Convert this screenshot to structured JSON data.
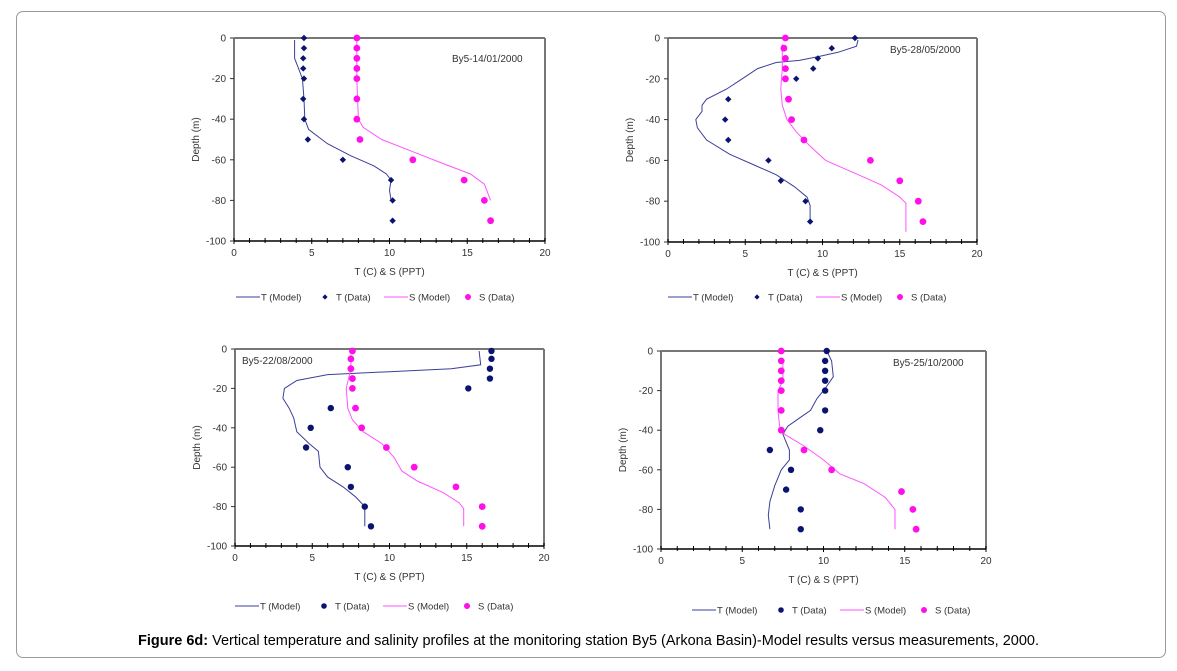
{
  "caption": {
    "label": "Figure 6d:",
    "text": " Vertical temperature and salinity profiles at the monitoring station By5 (Arkona Basin)-Model results versus measurements, 2000."
  },
  "colors": {
    "t_model": "#3b3f9a",
    "t_data": "#0a1470",
    "s_model": "#ff55ff",
    "s_data": "#ff10e8"
  },
  "chart_data": [
    {
      "type": "scatter",
      "title": "By5-14/01/2000",
      "title_position": "top-right",
      "xlabel": "T (C) & S (PPT)",
      "ylabel": "Depth (m)",
      "xlim": [
        0,
        20
      ],
      "ylim": [
        -100,
        0
      ],
      "xticks": [
        "0",
        "5",
        "10",
        "15",
        "20"
      ],
      "yticks": [
        "0",
        "-20",
        "-40",
        "-60",
        "-80",
        "-100"
      ],
      "grid": false,
      "legend_position": "bottom",
      "legend": [
        "T (Model)",
        "T (Data)",
        "S (Model)",
        "S (Data)"
      ],
      "t_data_marker": "diamond",
      "series": [
        {
          "name": "T (Model)",
          "kind": "line",
          "points": [
            [
              3.9,
              -1
            ],
            [
              3.9,
              -10
            ],
            [
              4.4,
              -20
            ],
            [
              4.5,
              -30
            ],
            [
              4.55,
              -40
            ],
            [
              4.8,
              -45
            ],
            [
              6.0,
              -52
            ],
            [
              7.5,
              -58
            ],
            [
              9.0,
              -63
            ],
            [
              9.8,
              -67
            ],
            [
              10.1,
              -70
            ],
            [
              10.0,
              -75
            ],
            [
              10.1,
              -80
            ]
          ]
        },
        {
          "name": "T (Data)",
          "kind": "scatter",
          "points": [
            [
              4.5,
              0
            ],
            [
              4.5,
              -5
            ],
            [
              4.45,
              -10
            ],
            [
              4.45,
              -15
            ],
            [
              4.5,
              -20
            ],
            [
              4.45,
              -30
            ],
            [
              4.5,
              -40
            ],
            [
              4.75,
              -50
            ],
            [
              7.0,
              -60
            ],
            [
              10.1,
              -70
            ],
            [
              10.2,
              -80
            ],
            [
              10.2,
              -90
            ]
          ]
        },
        {
          "name": "S (Model)",
          "kind": "line",
          "points": [
            [
              7.9,
              -1
            ],
            [
              7.9,
              -20
            ],
            [
              8.0,
              -40
            ],
            [
              8.3,
              -44
            ],
            [
              9.5,
              -50
            ],
            [
              11.5,
              -56
            ],
            [
              13.5,
              -62
            ],
            [
              15.2,
              -67
            ],
            [
              16.1,
              -72
            ],
            [
              16.5,
              -80
            ]
          ]
        },
        {
          "name": "S (Data)",
          "kind": "scatter",
          "points": [
            [
              7.9,
              0
            ],
            [
              7.9,
              -5
            ],
            [
              7.9,
              -10
            ],
            [
              7.9,
              -15
            ],
            [
              7.9,
              -20
            ],
            [
              7.9,
              -30
            ],
            [
              7.9,
              -40
            ],
            [
              8.1,
              -50
            ],
            [
              11.5,
              -60
            ],
            [
              14.8,
              -70
            ],
            [
              16.1,
              -80
            ],
            [
              16.5,
              -90
            ]
          ]
        }
      ]
    },
    {
      "type": "scatter",
      "title": "By5-28/05/2000",
      "title_position": "top-right",
      "xlabel": "T (C) & S (PPT)",
      "ylabel": "Depth (m)",
      "xlim": [
        0,
        20
      ],
      "ylim": [
        -100,
        0
      ],
      "xticks": [
        "0",
        "5",
        "10",
        "15",
        "20"
      ],
      "yticks": [
        "0",
        "-20",
        "-40",
        "-60",
        "-80",
        "-100"
      ],
      "grid": false,
      "legend_position": "bottom",
      "legend": [
        "T (Model)",
        "T (Data)",
        "S (Model)",
        "S (Data)"
      ],
      "t_data_marker": "diamond",
      "series": [
        {
          "name": "T (Model)",
          "kind": "line",
          "points": [
            [
              12.3,
              -1
            ],
            [
              12.2,
              -4
            ],
            [
              11.0,
              -7
            ],
            [
              9.8,
              -9
            ],
            [
              8.5,
              -11
            ],
            [
              7.0,
              -12
            ],
            [
              5.8,
              -15
            ],
            [
              4.8,
              -20
            ],
            [
              3.8,
              -25
            ],
            [
              2.5,
              -30
            ],
            [
              2.2,
              -33
            ],
            [
              2.2,
              -36
            ],
            [
              1.8,
              -40
            ],
            [
              1.9,
              -44
            ],
            [
              2.5,
              -50
            ],
            [
              4.0,
              -57
            ],
            [
              5.5,
              -62
            ],
            [
              7.0,
              -67
            ],
            [
              8.2,
              -73
            ],
            [
              9.0,
              -78
            ],
            [
              9.2,
              -82
            ],
            [
              9.2,
              -90
            ]
          ]
        },
        {
          "name": "T (Data)",
          "kind": "scatter",
          "points": [
            [
              12.1,
              0
            ],
            [
              10.6,
              -5
            ],
            [
              9.7,
              -10
            ],
            [
              9.4,
              -15
            ],
            [
              8.3,
              -20
            ],
            [
              3.9,
              -30
            ],
            [
              3.7,
              -40
            ],
            [
              3.9,
              -50
            ],
            [
              6.5,
              -60
            ],
            [
              7.3,
              -70
            ],
            [
              8.9,
              -80
            ],
            [
              9.2,
              -90
            ]
          ]
        },
        {
          "name": "S (Model)",
          "kind": "line",
          "points": [
            [
              7.4,
              -3
            ],
            [
              7.4,
              -15
            ],
            [
              7.3,
              -25
            ],
            [
              7.4,
              -33
            ],
            [
              7.7,
              -40
            ],
            [
              8.3,
              -46
            ],
            [
              9.2,
              -53
            ],
            [
              10.2,
              -60
            ],
            [
              12.0,
              -66
            ],
            [
              13.8,
              -72
            ],
            [
              15.0,
              -78
            ],
            [
              15.4,
              -81
            ],
            [
              15.4,
              -95
            ]
          ]
        },
        {
          "name": "S (Data)",
          "kind": "scatter",
          "points": [
            [
              7.6,
              0
            ],
            [
              7.5,
              -5
            ],
            [
              7.6,
              -10
            ],
            [
              7.6,
              -15
            ],
            [
              7.6,
              -20
            ],
            [
              7.8,
              -30
            ],
            [
              8.0,
              -40
            ],
            [
              8.8,
              -50
            ],
            [
              13.1,
              -60
            ],
            [
              15.0,
              -70
            ],
            [
              16.2,
              -80
            ],
            [
              16.5,
              -90
            ]
          ]
        }
      ]
    },
    {
      "type": "scatter",
      "title": "By5-22/08/2000",
      "title_position": "top-left",
      "xlabel": "T (C) & S (PPT)",
      "ylabel": "Depth (m)",
      "xlim": [
        0,
        20
      ],
      "ylim": [
        -100,
        0
      ],
      "xticks": [
        "0",
        "5",
        "10",
        "15",
        "20"
      ],
      "yticks": [
        "0",
        "-20",
        "-40",
        "-60",
        "-80",
        "-100"
      ],
      "grid": false,
      "legend_position": "bottom",
      "legend": [
        "T (Model)",
        "T (Data)",
        "S (Model)",
        "S (Data)"
      ],
      "t_data_marker": "circle",
      "series": [
        {
          "name": "T (Model)",
          "kind": "line",
          "points": [
            [
              15.8,
              -1
            ],
            [
              15.9,
              -8
            ],
            [
              14.0,
              -10
            ],
            [
              10.0,
              -11.5
            ],
            [
              6.0,
              -13
            ],
            [
              4.0,
              -16
            ],
            [
              3.2,
              -20
            ],
            [
              3.1,
              -25
            ],
            [
              3.5,
              -30
            ],
            [
              3.8,
              -35
            ],
            [
              4.0,
              -42
            ],
            [
              4.8,
              -48
            ],
            [
              5.4,
              -52
            ],
            [
              5.5,
              -60
            ],
            [
              6.0,
              -65
            ],
            [
              7.0,
              -70
            ],
            [
              7.8,
              -75
            ],
            [
              8.4,
              -80
            ],
            [
              8.4,
              -90
            ]
          ]
        },
        {
          "name": "T (Data)",
          "kind": "scatter",
          "points": [
            [
              16.6,
              -1
            ],
            [
              16.6,
              -5
            ],
            [
              16.5,
              -10
            ],
            [
              16.5,
              -15
            ],
            [
              15.1,
              -20
            ],
            [
              6.2,
              -30
            ],
            [
              4.9,
              -40
            ],
            [
              4.6,
              -50
            ],
            [
              7.3,
              -60
            ],
            [
              7.5,
              -70
            ],
            [
              8.4,
              -80
            ],
            [
              8.8,
              -90
            ]
          ]
        },
        {
          "name": "S (Model)",
          "kind": "line",
          "points": [
            [
              7.5,
              -3
            ],
            [
              7.5,
              -10
            ],
            [
              7.2,
              -20
            ],
            [
              7.3,
              -30
            ],
            [
              7.6,
              -36
            ],
            [
              8.3,
              -42
            ],
            [
              9.5,
              -48
            ],
            [
              10.3,
              -55
            ],
            [
              10.8,
              -62
            ],
            [
              11.8,
              -67
            ],
            [
              13.5,
              -73
            ],
            [
              14.5,
              -78
            ],
            [
              14.8,
              -81
            ],
            [
              14.8,
              -90
            ]
          ]
        },
        {
          "name": "S (Data)",
          "kind": "scatter",
          "points": [
            [
              7.6,
              -1
            ],
            [
              7.5,
              -5
            ],
            [
              7.5,
              -10
            ],
            [
              7.6,
              -15
            ],
            [
              7.6,
              -20
            ],
            [
              7.8,
              -30
            ],
            [
              8.2,
              -40
            ],
            [
              9.8,
              -50
            ],
            [
              11.6,
              -60
            ],
            [
              14.3,
              -70
            ],
            [
              16.0,
              -80
            ],
            [
              16.0,
              -90
            ]
          ]
        }
      ]
    },
    {
      "type": "scatter",
      "title": "By5-25/10/2000",
      "title_position": "top-right",
      "xlabel": "T (C) & S (PPT)",
      "ylabel": "Depth (m)",
      "xlim": [
        0,
        20
      ],
      "ylim": [
        -100,
        0
      ],
      "xticks": [
        "0",
        "5",
        "10",
        "15",
        "20"
      ],
      "yticks": [
        "0",
        "-20",
        "-40",
        "-60",
        "-80",
        "-100"
      ],
      "grid": false,
      "legend_position": "bottom",
      "legend": [
        "T (Model)",
        "T (Data)",
        "S (Model)",
        "S (Data)"
      ],
      "t_data_marker": "circle",
      "series": [
        {
          "name": "T (Model)",
          "kind": "line",
          "points": [
            [
              10.2,
              0
            ],
            [
              10.5,
              -5
            ],
            [
              10.6,
              -13
            ],
            [
              10.1,
              -19
            ],
            [
              9.6,
              -24
            ],
            [
              9.2,
              -30
            ],
            [
              8.5,
              -34
            ],
            [
              7.8,
              -38
            ],
            [
              7.5,
              -42
            ],
            [
              7.7,
              -46
            ],
            [
              7.9,
              -50
            ],
            [
              7.9,
              -55
            ],
            [
              7.4,
              -60
            ],
            [
              7.0,
              -68
            ],
            [
              6.7,
              -76
            ],
            [
              6.6,
              -83
            ],
            [
              6.7,
              -90
            ]
          ]
        },
        {
          "name": "T (Data)",
          "kind": "scatter",
          "points": [
            [
              10.2,
              0
            ],
            [
              10.1,
              -5
            ],
            [
              10.1,
              -10
            ],
            [
              10.1,
              -15
            ],
            [
              10.1,
              -20
            ],
            [
              10.1,
              -30
            ],
            [
              9.8,
              -40
            ],
            [
              6.7,
              -50
            ],
            [
              8.0,
              -60
            ],
            [
              7.7,
              -70
            ],
            [
              8.6,
              -80
            ],
            [
              8.6,
              -90
            ]
          ]
        },
        {
          "name": "S (Model)",
          "kind": "line",
          "points": [
            [
              7.5,
              -4
            ],
            [
              7.5,
              -15
            ],
            [
              7.2,
              -20
            ],
            [
              7.2,
              -30
            ],
            [
              7.3,
              -38
            ],
            [
              7.6,
              -42
            ],
            [
              8.8,
              -48
            ],
            [
              10.0,
              -55
            ],
            [
              11.0,
              -62
            ],
            [
              12.5,
              -67
            ],
            [
              13.8,
              -74
            ],
            [
              14.4,
              -80
            ],
            [
              14.4,
              -90
            ]
          ]
        },
        {
          "name": "S (Data)",
          "kind": "scatter",
          "points": [
            [
              7.4,
              0
            ],
            [
              7.4,
              -5
            ],
            [
              7.4,
              -10
            ],
            [
              7.4,
              -15
            ],
            [
              7.4,
              -20
            ],
            [
              7.4,
              -30
            ],
            [
              7.4,
              -40
            ],
            [
              8.8,
              -50
            ],
            [
              10.5,
              -60
            ],
            [
              14.8,
              -71
            ],
            [
              15.5,
              -80
            ],
            [
              15.7,
              -90
            ]
          ]
        }
      ]
    }
  ]
}
